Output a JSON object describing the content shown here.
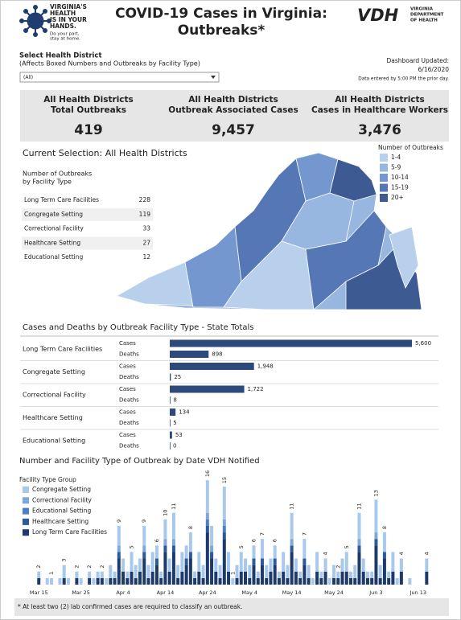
{
  "header": {
    "logo_lines": [
      "VIRGINIA'S",
      "HEALTH",
      "IS IN YOUR",
      "HANDS."
    ],
    "logo_tagline": [
      "Do your part,",
      "stay at home."
    ],
    "title_lines": [
      "COVID-19 Cases in Virginia:",
      "Outbreaks*"
    ],
    "agency_abbr": "VDH",
    "agency_lines": [
      "VIRGINIA",
      "DEPARTMENT",
      "OF HEALTH"
    ]
  },
  "filter": {
    "label": "Select Health District",
    "note": "(Affects Boxed Numbers and Outbreaks by Facility Type)",
    "selected": "(All)"
  },
  "updated": {
    "label": "Dashboard Updated:",
    "date": "6/16/2020",
    "note": "Data entered by 5:00 PM the prior day."
  },
  "kpis": [
    {
      "title_lines": [
        "All Health Districts",
        "Total Outbreaks"
      ],
      "value": 419
    },
    {
      "title_lines": [
        "All Health Districts",
        "Outbreak Associated Cases"
      ],
      "value": {
        "value": 9457,
        "label": "9,457"
      }
    },
    {
      "title_lines": [
        "All Health Districts",
        "Cases in Healthcare Workers"
      ],
      "value": {
        "value": 3476,
        "label": "3,476"
      }
    }
  ],
  "selection_title": "Current Selection: All Health Districts",
  "facility_table": {
    "title_lines": [
      "Number of Outbreaks",
      "by Facility Type"
    ],
    "rows": [
      {
        "name": "Long Term Care Facilities",
        "count": 228
      },
      {
        "name": "Congregate Setting",
        "count": 119
      },
      {
        "name": "Correctional Facility",
        "count": 33
      },
      {
        "name": "Healthcare Setting",
        "count": 27
      },
      {
        "name": "Educational Setting",
        "count": 12
      }
    ]
  },
  "map_legend": {
    "title": "Number of Outbreaks",
    "items": [
      {
        "label": "1-4",
        "color": "#b8d0ec"
      },
      {
        "label": "5-9",
        "color": "#97b6e0"
      },
      {
        "label": "10-14",
        "color": "#7497cf"
      },
      {
        "label": "15-19",
        "color": "#5677b5"
      },
      {
        "label": "20+",
        "color": "#3d5b92"
      }
    ]
  },
  "chart_data": [
    {
      "type": "hbar",
      "title": "Cases and Deaths by Outbreak Facility Type - State Totals",
      "categories": [
        "Long Term Care Facilities",
        "Congregate Setting",
        "Correctional Facility",
        "Healthcare Setting",
        "Educational Setting"
      ],
      "series": [
        {
          "name": "Cases",
          "color": "#2e4a7d",
          "values": [
            5600,
            1948,
            1722,
            134,
            53
          ],
          "value_labels": [
            "5,600",
            "1,948",
            "1,722",
            "134",
            "53"
          ]
        },
        {
          "name": "Deaths",
          "color": "#2e4a7d",
          "values": [
            898,
            25,
            8,
            5,
            0
          ]
        }
      ],
      "xlim": [
        0,
        5600
      ]
    },
    {
      "type": "stacked-bar",
      "title": "Number and Facility Type of Outbreak by Date VDH Notified",
      "legend_title": "Facility Type Group",
      "categories": [
        null,
        "Mar 15",
        null,
        null,
        null,
        null,
        null,
        null,
        null,
        null,
        null,
        "Mar 25",
        null,
        null,
        null,
        null,
        null,
        null,
        null,
        null,
        null,
        "Apr 4",
        null,
        null,
        null,
        null,
        null,
        null,
        null,
        null,
        null,
        "Apr 14",
        null,
        null,
        null,
        null,
        null,
        null,
        null,
        null,
        null,
        "Apr 24",
        null,
        null,
        null,
        null,
        null,
        null,
        null,
        null,
        null,
        "May 4",
        null,
        null,
        null,
        null,
        null,
        null,
        null,
        null,
        null,
        "May 14",
        null,
        null,
        null,
        null,
        null,
        null,
        null,
        null,
        null,
        "May 24",
        null,
        null,
        null,
        null,
        null,
        null,
        null,
        null,
        null,
        "Jun 3",
        null,
        null,
        null,
        null,
        null,
        null,
        null,
        null,
        null,
        "Jun 13",
        null,
        null
      ],
      "series": [
        {
          "name": "Congregate Setting",
          "color": "#a9c9ec",
          "values": [
            0,
            1,
            0,
            1,
            1,
            0,
            1,
            2,
            1,
            0,
            1,
            1,
            0,
            1,
            1,
            1,
            1,
            1,
            2,
            1,
            3,
            2,
            1,
            3,
            2,
            2,
            3,
            2,
            3,
            2,
            1,
            3,
            2,
            4,
            2,
            3,
            2,
            3,
            1,
            3,
            2,
            5,
            3,
            2,
            2,
            5,
            3,
            1,
            2,
            3,
            2,
            2,
            2,
            1,
            3,
            2,
            2,
            2,
            1,
            3,
            2,
            4,
            2,
            1,
            3,
            2,
            1,
            3,
            1,
            2,
            1,
            2,
            1,
            2,
            3,
            1,
            2,
            4,
            2,
            1,
            1,
            5,
            2,
            3,
            1,
            3,
            1,
            2,
            0,
            1,
            0,
            0,
            0,
            2
          ]
        },
        {
          "name": "Correctional Facility",
          "color": "#7fa8d9",
          "values": [
            0,
            0,
            0,
            0,
            0,
            0,
            0,
            0,
            0,
            0,
            0,
            0,
            0,
            0,
            0,
            0,
            0,
            0,
            0,
            0,
            1,
            0,
            0,
            0,
            0,
            0,
            1,
            0,
            0,
            0,
            0,
            1,
            0,
            1,
            0,
            0,
            0,
            0,
            0,
            0,
            0,
            1,
            1,
            0,
            0,
            1,
            0,
            0,
            0,
            0,
            0,
            0,
            0,
            0,
            0,
            0,
            0,
            0,
            0,
            0,
            0,
            1,
            0,
            0,
            0,
            0,
            0,
            0,
            0,
            0,
            0,
            0,
            0,
            0,
            0,
            0,
            0,
            1,
            0,
            0,
            0,
            1,
            0,
            0,
            0,
            0,
            0,
            0,
            0,
            0,
            0,
            0,
            0,
            0
          ]
        },
        {
          "name": "Educational Setting",
          "color": "#4f7fc0",
          "values": [
            0,
            0,
            0,
            0,
            0,
            0,
            0,
            0,
            0,
            0,
            0,
            0,
            0,
            0,
            0,
            0,
            0,
            0,
            0,
            0,
            0,
            0,
            0,
            0,
            0,
            0,
            0,
            0,
            0,
            0,
            0,
            0,
            0,
            0,
            0,
            0,
            0,
            0,
            0,
            0,
            0,
            1,
            0,
            0,
            0,
            1,
            0,
            0,
            0,
            0,
            0,
            0,
            0,
            0,
            0,
            0,
            0,
            0,
            0,
            0,
            0,
            0,
            0,
            0,
            0,
            0,
            0,
            0,
            0,
            0,
            0,
            0,
            0,
            0,
            0,
            0,
            0,
            0,
            0,
            0,
            0,
            0,
            0,
            0,
            0,
            0,
            0,
            0,
            0,
            0,
            0,
            0,
            0,
            0
          ]
        },
        {
          "name": "Healthcare Setting",
          "color": "#2c5a9a",
          "values": [
            0,
            0,
            0,
            0,
            0,
            0,
            0,
            0,
            0,
            0,
            0,
            0,
            0,
            0,
            0,
            0,
            0,
            0,
            0,
            0,
            1,
            0,
            0,
            0,
            0,
            0,
            1,
            0,
            0,
            1,
            0,
            1,
            0,
            1,
            0,
            0,
            1,
            1,
            0,
            0,
            0,
            1,
            1,
            0,
            0,
            1,
            0,
            0,
            0,
            0,
            0,
            0,
            1,
            0,
            1,
            0,
            0,
            1,
            0,
            0,
            0,
            1,
            0,
            0,
            1,
            0,
            0,
            0,
            0,
            0,
            0,
            0,
            0,
            0,
            0,
            0,
            0,
            1,
            0,
            0,
            0,
            1,
            0,
            1,
            0,
            0,
            0,
            0,
            0,
            0,
            0,
            0,
            0,
            0
          ]
        },
        {
          "name": "Long Term Care Facilities",
          "color": "#1e3a6b",
          "values": [
            0,
            1,
            0,
            0,
            0,
            0,
            0,
            1,
            0,
            0,
            1,
            0,
            0,
            1,
            0,
            1,
            1,
            0,
            1,
            1,
            4,
            2,
            1,
            2,
            1,
            2,
            4,
            1,
            2,
            3,
            1,
            5,
            2,
            5,
            1,
            2,
            3,
            4,
            1,
            2,
            1,
            8,
            4,
            2,
            1,
            7,
            2,
            0,
            1,
            2,
            2,
            1,
            3,
            1,
            3,
            1,
            2,
            3,
            1,
            2,
            1,
            5,
            2,
            1,
            3,
            1,
            0,
            2,
            1,
            2,
            0,
            1,
            1,
            2,
            2,
            1,
            1,
            5,
            2,
            1,
            1,
            6,
            1,
            4,
            1,
            2,
            0,
            2,
            0,
            0,
            0,
            0,
            0,
            2
          ]
        }
      ],
      "total_labels": [
        null,
        2,
        null,
        null,
        1,
        null,
        null,
        3,
        null,
        null,
        2,
        null,
        null,
        2,
        null,
        null,
        2,
        null,
        null,
        null,
        9,
        null,
        null,
        5,
        null,
        null,
        9,
        null,
        null,
        6,
        null,
        10,
        null,
        11,
        null,
        null,
        null,
        8,
        null,
        null,
        null,
        16,
        null,
        null,
        null,
        15,
        null,
        1,
        null,
        5,
        null,
        null,
        6,
        null,
        7,
        null,
        null,
        6,
        null,
        null,
        null,
        11,
        null,
        null,
        7,
        null,
        null,
        null,
        null,
        4,
        null,
        null,
        2,
        null,
        5,
        null,
        null,
        11,
        null,
        null,
        null,
        13,
        null,
        8,
        null,
        null,
        null,
        4,
        null,
        null,
        null,
        null,
        null,
        4
      ],
      "ylim": [
        0,
        17
      ]
    }
  ],
  "footnote": "* At least two (2) lab confirmed cases are required to classify an outbreak."
}
